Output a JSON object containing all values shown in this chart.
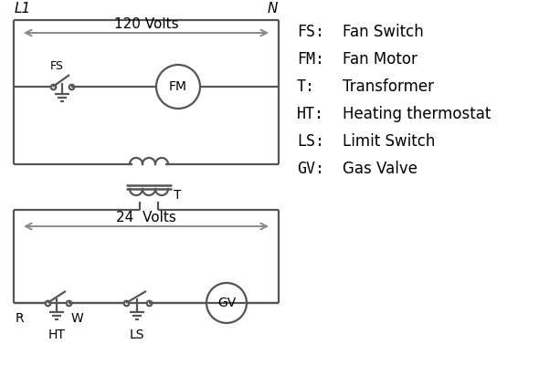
{
  "background_color": "#ffffff",
  "line_color": "#555555",
  "arrow_color": "#888888",
  "text_color": "#000000",
  "legend_items": [
    [
      "FS:",
      "Fan Switch"
    ],
    [
      "FM:",
      "Fan Motor"
    ],
    [
      "T:",
      "Transformer"
    ],
    [
      "HT:",
      "Heating thermostat"
    ],
    [
      "LS:",
      "Limit Switch"
    ],
    [
      "GV:",
      "Gas Valve"
    ]
  ],
  "volts_120_label": "120 Volts",
  "volts_24_label": "24  Volts",
  "L1_label": "L1",
  "N_label": "N",
  "T_label": "T",
  "R_label": "R",
  "W_label": "W",
  "HT_label": "HT",
  "LS_label": "LS",
  "FS_label": "FS",
  "FM_label": "FM",
  "GV_label": "GV"
}
